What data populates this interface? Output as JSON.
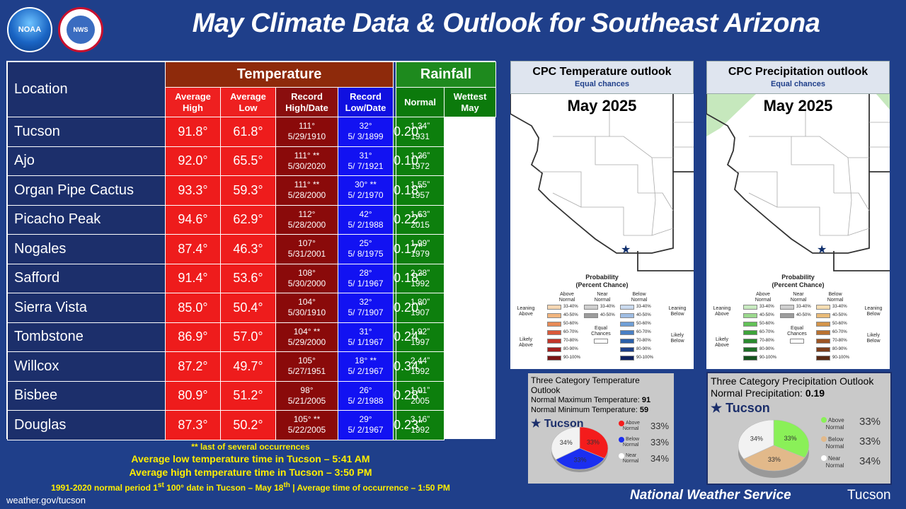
{
  "header": {
    "title": "May Climate Data & Outlook for Southeast Arizona",
    "noaa_logo": "NOAA",
    "nws_logo": "NWS"
  },
  "table": {
    "location_header": "Location",
    "temperature_header": "Temperature",
    "rainfall_header": "Rainfall",
    "col_avg_high": [
      "Average",
      "High"
    ],
    "col_avg_low": [
      "Average",
      "Low"
    ],
    "col_rec_high": [
      "Record",
      "High/Date"
    ],
    "col_rec_low": [
      "Record",
      "Low/Date"
    ],
    "col_normal": "Normal",
    "col_wettest": [
      "Wettest",
      "May"
    ],
    "rows": [
      {
        "loc": "Tucson",
        "hi": "91.8°",
        "lo": "61.8°",
        "rh1": "111°",
        "rh2": "5/29/1910",
        "rl1": "32°",
        "rl2": "5/ 3/1899",
        "rn": "0.20”",
        "w1": "1.34”",
        "w2": "1931"
      },
      {
        "loc": "Ajo",
        "hi": "92.0°",
        "lo": "65.5°",
        "rh1": "111° **",
        "rh2": "5/30/2020",
        "rl1": "31°",
        "rl2": "5/ 7/1921",
        "rn": "0.10”",
        "w1": "1.26”",
        "w2": "1972"
      },
      {
        "loc": "Organ Pipe Cactus",
        "hi": "93.3°",
        "lo": "59.3°",
        "rh1": "111° **",
        "rh2": "5/28/2000",
        "rl1": "30° **",
        "rl2": "5/ 2/1970",
        "rn": "0.18”",
        "w1": "1.55”",
        "w2": "1957"
      },
      {
        "loc": "Picacho Peak",
        "hi": "94.6°",
        "lo": "62.9°",
        "rh1": "112°",
        "rh2": "5/28/2000",
        "rl1": "42°",
        "rl2": "5/ 2/1988",
        "rn": "0.22”",
        "w1": "1.63”",
        "w2": "2015"
      },
      {
        "loc": "Nogales",
        "hi": "87.4°",
        "lo": "46.3°",
        "rh1": "107°",
        "rh2": "5/31/2001",
        "rl1": "25°",
        "rl2": "5/ 8/1975",
        "rn": "0.17”",
        "w1": "1.99”",
        "w2": "1979"
      },
      {
        "loc": "Safford",
        "hi": "91.4°",
        "lo": "53.6°",
        "rh1": "108°",
        "rh2": "5/30/2000",
        "rl1": "28°",
        "rl2": "5/ 1/1967",
        "rn": "0.18”",
        "w1": "2.28”",
        "w2": "1992"
      },
      {
        "loc": "Sierra Vista",
        "hi": "85.0°",
        "lo": "50.4°",
        "rh1": "104°",
        "rh2": "5/30/1910",
        "rl1": "32°",
        "rl2": "5/ 7/1907",
        "rn": "0.20”",
        "w1": "1.80”",
        "w2": "1907"
      },
      {
        "loc": "Tombstone",
        "hi": "86.9°",
        "lo": "57.0°",
        "rh1": "104° **",
        "rh2": "5/29/2000",
        "rl1": "31°",
        "rl2": "5/ 1/1967",
        "rn": "0.24”",
        "w1": "1.92”",
        "w2": "1997"
      },
      {
        "loc": "Willcox",
        "hi": "87.2°",
        "lo": "49.7°",
        "rh1": "105°",
        "rh2": "5/27/1951",
        "rl1": "18° **",
        "rl2": "5/ 2/1967",
        "rn": "0.34”",
        "w1": "2.44”",
        "w2": "1992"
      },
      {
        "loc": "Bisbee",
        "hi": "80.9°",
        "lo": "51.2°",
        "rh1": "98°",
        "rh2": "5/21/2005",
        "rl1": "26°",
        "rl2": "5/ 2/1988",
        "rn": "0.28”",
        "w1": "1.01”",
        "w2": "2005"
      },
      {
        "loc": "Douglas",
        "hi": "87.3°",
        "lo": "50.2°",
        "rh1": "105° **",
        "rh2": "5/22/2005",
        "rl1": "29°",
        "rl2": "5/ 2/1967",
        "rn": "0.23”",
        "w1": "3.16”",
        "w2": "1992"
      }
    ]
  },
  "notes": {
    "occurrences": "** last of several occurrences",
    "low_time": "Average low temperature time in Tucson – 5:41 AM",
    "high_time": "Average high temperature time in Tucson – 3:50 PM",
    "first_100_a": "1991-2020 normal period 1",
    "first_100_sup1": "st",
    "first_100_b": " 100° date in Tucson – May 18",
    "first_100_sup2": "th",
    "first_100_c": " | Average time of occurrence – 1:50 PM",
    "url": "weather.gov/tucson"
  },
  "temp_outlook": {
    "title": "CPC Temperature outlook",
    "subtitle": "Equal chances",
    "map_date": "May 2025",
    "prob_title": [
      "Probability",
      "(Percent Chance)"
    ],
    "col_above": [
      "Above",
      "Normal"
    ],
    "col_near": [
      "Near",
      "Normal"
    ],
    "col_below": [
      "Below",
      "Normal"
    ],
    "leaning_above": [
      "Leaning",
      "Above"
    ],
    "likely_above": [
      "Likely",
      "Above"
    ],
    "leaning_below": [
      "Leaning",
      "Below"
    ],
    "likely_below": [
      "Likely",
      "Below"
    ],
    "equal_chances": [
      "Equal",
      "Chances"
    ],
    "bins": [
      "33-40%",
      "40-50%",
      "50-60%",
      "60-70%",
      "70-80%",
      "80-90%",
      "90-100%"
    ],
    "near_bins": [
      "33-40%",
      "40-50%"
    ],
    "above_colors": [
      "#f5d7b3",
      "#f2b57e",
      "#e88a56",
      "#d9593a",
      "#c1352a",
      "#a3201f",
      "#7a1515"
    ],
    "below_colors": [
      "#c9d9ee",
      "#9fbde3",
      "#6f9fd6",
      "#4a80c4",
      "#2b5fa8",
      "#1d3f88",
      "#0f2160"
    ]
  },
  "precip_outlook": {
    "title": "CPC Precipitation outlook",
    "subtitle": "Equal chances",
    "map_date": "May 2025",
    "prob_title": [
      "Probability",
      "(Percent Chance)"
    ],
    "col_above": [
      "Above",
      "Normal"
    ],
    "col_near": [
      "Near",
      "Normal"
    ],
    "col_below": [
      "Below",
      "Normal"
    ],
    "leaning_above": [
      "Leaning",
      "Above"
    ],
    "likely_above": [
      "Likely",
      "Above"
    ],
    "leaning_below": [
      "Leaning",
      "Below"
    ],
    "likely_below": [
      "Likely",
      "Below"
    ],
    "equal_chances": [
      "Equal",
      "Chances"
    ],
    "bins": [
      "33-40%",
      "40-50%",
      "50-60%",
      "60-70%",
      "70-80%",
      "80-90%",
      "90-100%"
    ],
    "near_bins": [
      "33-40%",
      "40-50%"
    ],
    "above_colors": [
      "#c8eac0",
      "#9bd98d",
      "#62c157",
      "#3ea33a",
      "#2a8a2e",
      "#1e6e27",
      "#14521d"
    ],
    "below_colors": [
      "#f5ddb2",
      "#e9bb78",
      "#d4954a",
      "#b97231",
      "#9c5524",
      "#7e3f1c",
      "#5a2a13"
    ]
  },
  "temp_category": {
    "title": "Three Category Temperature Outlook",
    "normal_max_label": "Normal Maximum Temperature: ",
    "normal_max": "91",
    "normal_min_label": "Normal Minimum Temperature: ",
    "normal_min": "59",
    "city": "Tucson",
    "above_label": [
      "Above",
      "Normal"
    ],
    "below_label": [
      "Below",
      "Normal"
    ],
    "near_label": [
      "Near",
      "Normal"
    ],
    "above_pct": "33%",
    "below_pct": "33%",
    "near_pct": "34%",
    "colors": {
      "above": "#f41c1c",
      "below": "#1b2ff0",
      "near": "#f2f2f2"
    },
    "pie": {
      "above": 33,
      "below": 33,
      "near": 34
    }
  },
  "precip_category": {
    "title": "Three Category Precipitation Outlook",
    "normal_label": "Normal Precipitation: ",
    "normal_value": "0.19",
    "city": "Tucson",
    "above_label": [
      "Above",
      "Normal"
    ],
    "below_label": [
      "Below",
      "Normal"
    ],
    "near_label": [
      "Near",
      "Normal"
    ],
    "above_pct": "33%",
    "below_pct": "33%",
    "near_pct": "34%",
    "colors": {
      "above": "#8af058",
      "below": "#e2b98a",
      "near": "#f2f2f2"
    },
    "pie": {
      "above": 33,
      "below": 33,
      "near": 34
    }
  },
  "footer": {
    "nws": "National Weather Service",
    "office": "Tucson"
  }
}
